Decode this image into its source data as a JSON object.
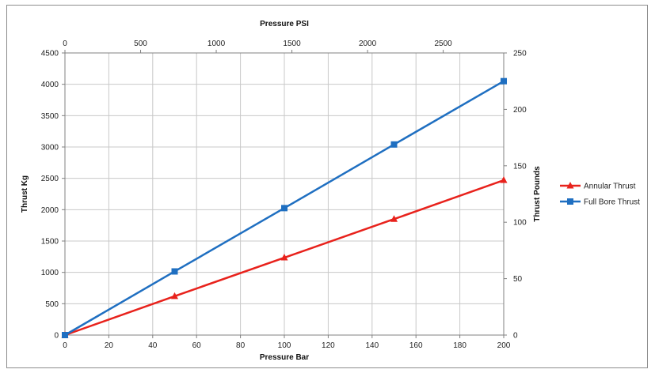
{
  "chart_data": {
    "type": "line",
    "x_bottom": {
      "label": "Pressure Bar",
      "range": [
        0,
        200
      ],
      "ticks": [
        0,
        20,
        40,
        60,
        80,
        100,
        120,
        140,
        160,
        180,
        200
      ]
    },
    "x_top": {
      "label": "Pressure PSI",
      "range": [
        0,
        2900
      ],
      "ticks": [
        0,
        500,
        1000,
        1500,
        2000,
        2500
      ]
    },
    "y_left": {
      "label": "Thrust Kg",
      "range": [
        0,
        4500
      ],
      "ticks": [
        0,
        500,
        1000,
        1500,
        2000,
        2500,
        3000,
        3500,
        4000,
        4500
      ]
    },
    "y_right": {
      "label": "Thrust Pounds",
      "range": [
        0,
        250
      ],
      "ticks": [
        0,
        50,
        100,
        150,
        200,
        250
      ]
    },
    "grid": true,
    "legend_position": "right",
    "series": [
      {
        "name": "Annular Thrust",
        "color": "#e8221c",
        "marker": "triangle",
        "points": [
          [
            0,
            0
          ],
          [
            50,
            620
          ],
          [
            100,
            1235
          ],
          [
            150,
            1850
          ],
          [
            200,
            2470
          ]
        ]
      },
      {
        "name": "Full Bore Thrust",
        "color": "#1f6fc1",
        "marker": "square",
        "points": [
          [
            0,
            0
          ],
          [
            50,
            1015
          ],
          [
            100,
            2025
          ],
          [
            150,
            3040
          ],
          [
            200,
            4050
          ]
        ]
      }
    ]
  }
}
